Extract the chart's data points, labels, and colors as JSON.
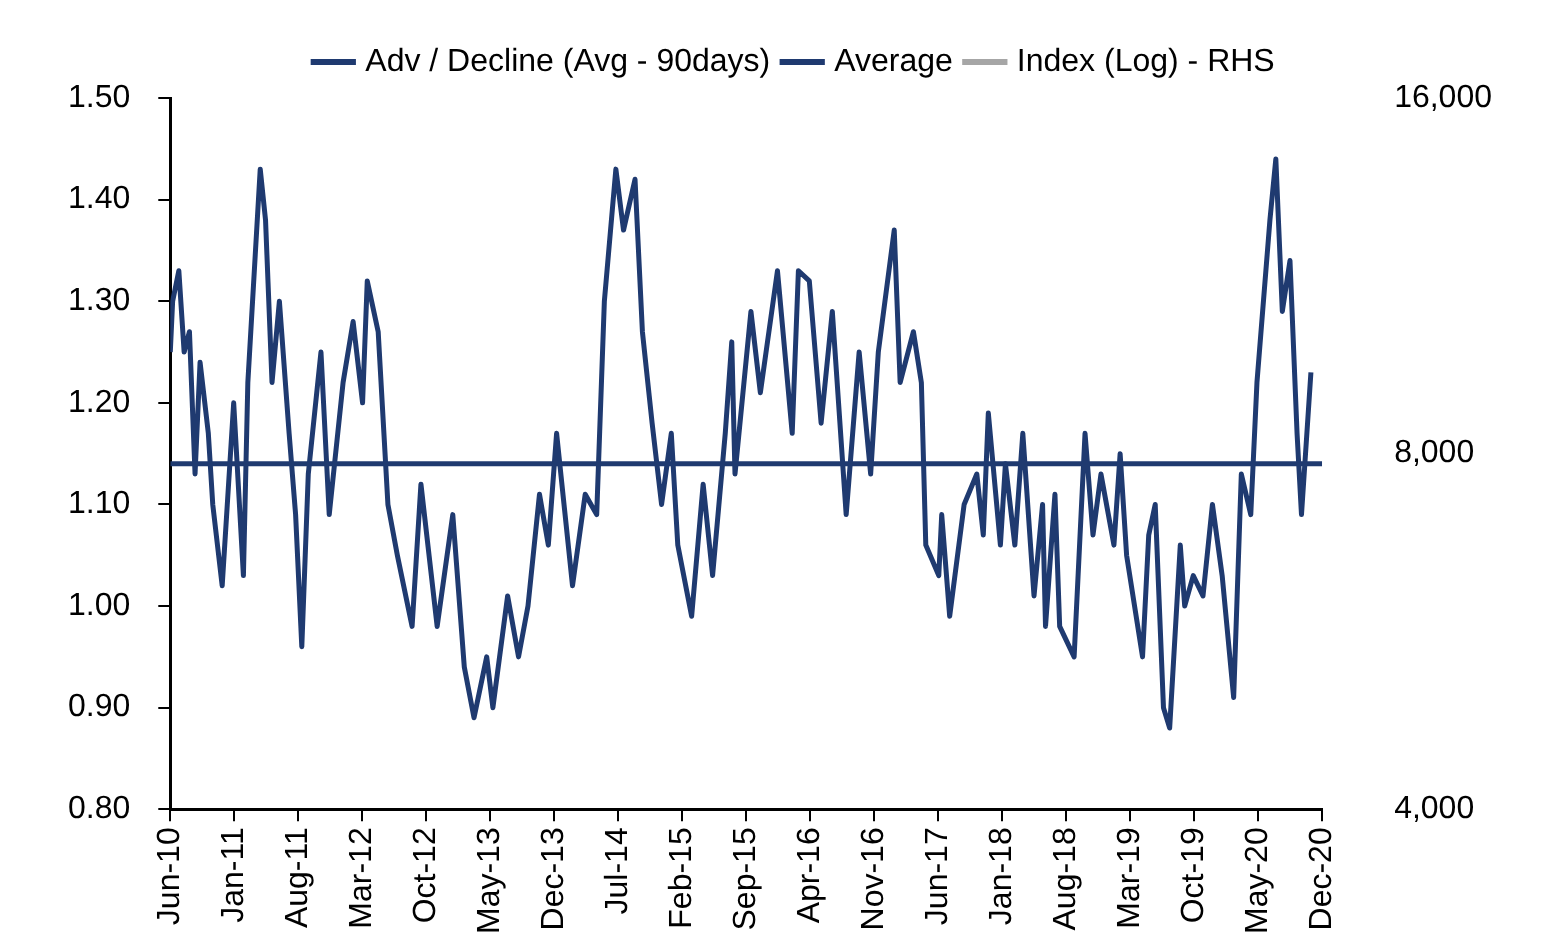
{
  "chart_data": {
    "type": "line",
    "legend": "top",
    "marker": "none",
    "line_style": "solid",
    "log": "y2",
    "xlim": [
      "2010-06",
      "2020-12"
    ],
    "xticks": [
      {
        "value": "2010-06",
        "label": "Jun-10"
      },
      {
        "value": "2011-01",
        "label": "Jan-11"
      },
      {
        "value": "2011-08",
        "label": "Aug-11"
      },
      {
        "value": "2012-03",
        "label": "Mar-12"
      },
      {
        "value": "2012-10",
        "label": "Oct-12"
      },
      {
        "value": "2013-05",
        "label": "May-13"
      },
      {
        "value": "2013-12",
        "label": "Dec-13"
      },
      {
        "value": "2014-07",
        "label": "Jul-14"
      },
      {
        "value": "2015-02",
        "label": "Feb-15"
      },
      {
        "value": "2015-09",
        "label": "Sep-15"
      },
      {
        "value": "2016-04",
        "label": "Apr-16"
      },
      {
        "value": "2016-11",
        "label": "Nov-16"
      },
      {
        "value": "2017-06",
        "label": "Jun-17"
      },
      {
        "value": "2018-01",
        "label": "Jan-18"
      },
      {
        "value": "2018-08",
        "label": "Aug-18"
      },
      {
        "value": "2019-03",
        "label": "Mar-19"
      },
      {
        "value": "2019-10",
        "label": "Oct-19"
      },
      {
        "value": "2020-05",
        "label": "May-20"
      },
      {
        "value": "2020-12",
        "label": "Dec-20"
      }
    ],
    "ylim": [
      0.8,
      1.5
    ],
    "yticks": [
      {
        "value": 0.8,
        "label": "0.80"
      },
      {
        "value": 0.9,
        "label": "0.90"
      },
      {
        "value": 1.0,
        "label": "1.00"
      },
      {
        "value": 1.1,
        "label": "1.10"
      },
      {
        "value": 1.2,
        "label": "1.20"
      },
      {
        "value": 1.3,
        "label": "1.30"
      },
      {
        "value": 1.4,
        "label": "1.40"
      },
      {
        "value": 1.5,
        "label": "1.50"
      }
    ],
    "y2lim": [
      4000,
      16000
    ],
    "y2ticks": [
      {
        "value": 4000,
        "label": "4,000"
      },
      {
        "value": 8000,
        "label": "8,000"
      },
      {
        "value": 16000,
        "label": "16,000"
      }
    ],
    "series": [
      {
        "name": "Adv / Decline (Avg - 90days)",
        "color": "#1f3a70",
        "x": [
          "2010-06-01",
          "2010-06-09",
          "2010-06-30",
          "2010-07-17",
          "2010-08-04",
          "2010-08-23",
          "2010-09-09",
          "2010-10-06",
          "2010-10-21",
          "2010-11-22",
          "2010-12-30",
          "2011-02-01",
          "2011-02-16",
          "2011-03-27",
          "2011-04-14",
          "2011-05-05",
          "2011-05-30",
          "2011-07-01",
          "2011-07-23",
          "2011-08-13",
          "2011-09-04",
          "2011-10-16",
          "2011-11-13",
          "2011-12-29",
          "2012-02-01",
          "2012-03-02",
          "2012-03-18",
          "2012-04-24",
          "2012-05-26",
          "2012-06-27",
          "2012-08-15",
          "2012-09-14",
          "2012-11-07",
          "2012-12-29",
          "2013-02-06",
          "2013-03-08",
          "2013-04-20",
          "2013-05-10",
          "2013-06-29",
          "2013-08-04",
          "2013-09-05",
          "2013-10-13",
          "2013-11-12",
          "2013-12-09",
          "2014-02-01",
          "2014-03-13",
          "2014-04-21",
          "2014-05-16",
          "2014-06-24",
          "2014-07-19",
          "2014-08-27",
          "2014-09-21",
          "2014-10-23",
          "2014-11-24",
          "2014-12-26",
          "2015-01-17",
          "2015-03-02",
          "2015-04-10",
          "2015-05-11",
          "2015-06-23",
          "2015-07-14",
          "2015-07-25",
          "2015-09-17",
          "2015-10-18",
          "2015-12-14",
          "2016-02-02",
          "2016-02-23",
          "2016-03-29",
          "2016-05-07",
          "2016-06-14",
          "2016-07-30",
          "2016-09-12",
          "2016-10-20",
          "2016-11-15",
          "2017-01-07",
          "2017-01-27",
          "2017-03-10",
          "2017-04-06",
          "2017-04-21",
          "2017-06-03",
          "2017-06-13",
          "2017-07-09",
          "2017-08-27",
          "2017-10-08",
          "2017-10-30",
          "2017-11-16",
          "2017-12-26",
          "2018-01-12",
          "2018-02-13",
          "2018-03-09",
          "2018-04-16",
          "2018-05-14",
          "2018-05-24",
          "2018-06-25",
          "2018-07-10",
          "2018-08-28",
          "2018-10-03",
          "2018-10-30",
          "2018-11-26",
          "2019-01-08",
          "2019-01-29",
          "2019-02-20",
          "2019-04-12",
          "2019-05-02",
          "2019-05-24",
          "2019-06-21",
          "2019-07-11",
          "2019-08-16",
          "2019-08-31",
          "2019-09-29",
          "2019-10-31",
          "2019-12-01",
          "2020-01-03",
          "2020-02-11",
          "2020-03-06",
          "2020-04-07",
          "2020-04-28",
          "2020-06-10",
          "2020-06-30",
          "2020-07-21",
          "2020-08-16",
          "2020-09-09",
          "2020-09-24",
          "2020-10-25"
        ],
        "values": [
          1.25,
          1.3,
          1.33,
          1.25,
          1.27,
          1.13,
          1.24,
          1.17,
          1.1,
          1.02,
          1.2,
          1.03,
          1.22,
          1.43,
          1.38,
          1.22,
          1.3,
          1.17,
          1.09,
          0.96,
          1.13,
          1.25,
          1.09,
          1.22,
          1.28,
          1.2,
          1.32,
          1.27,
          1.1,
          1.05,
          0.98,
          1.12,
          0.98,
          1.09,
          0.94,
          0.89,
          0.95,
          0.9,
          1.01,
          0.95,
          1.0,
          1.11,
          1.06,
          1.17,
          1.02,
          1.11,
          1.09,
          1.3,
          1.43,
          1.37,
          1.42,
          1.27,
          1.18,
          1.1,
          1.17,
          1.06,
          0.99,
          1.12,
          1.03,
          1.17,
          1.26,
          1.13,
          1.29,
          1.21,
          1.33,
          1.17,
          1.33,
          1.32,
          1.18,
          1.29,
          1.09,
          1.25,
          1.13,
          1.25,
          1.37,
          1.22,
          1.27,
          1.22,
          1.06,
          1.03,
          1.09,
          0.99,
          1.1,
          1.13,
          1.07,
          1.19,
          1.06,
          1.14,
          1.06,
          1.17,
          1.01,
          1.1,
          0.98,
          1.11,
          0.98,
          0.95,
          1.17,
          1.07,
          1.13,
          1.06,
          1.15,
          1.05,
          0.95,
          1.07,
          1.1,
          0.9,
          0.88,
          1.06,
          1.0,
          1.03,
          1.01,
          1.1,
          1.03,
          0.91,
          1.13,
          1.09,
          1.22,
          1.38,
          1.44,
          1.29,
          1.34,
          1.17,
          1.09,
          1.23
        ]
      },
      {
        "name": "Average",
        "color": "#1f3a70",
        "x": [
          "2010-06",
          "2020-12"
        ],
        "values": [
          1.14,
          1.14
        ]
      },
      {
        "name": "Index (Log) - RHS",
        "color": "#a6a6a6",
        "axis": "y2"
      }
    ]
  }
}
